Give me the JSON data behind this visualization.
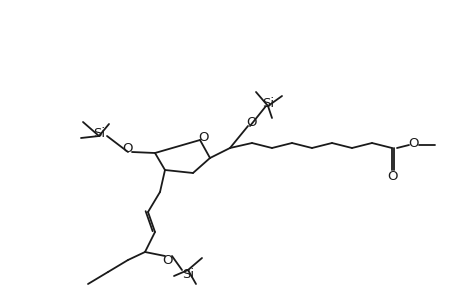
{
  "bg_color": "#ffffff",
  "line_color": "#1a1a1a",
  "line_width": 1.3,
  "font_size": 8.5,
  "figsize": [
    4.6,
    3.0
  ],
  "dpi": 100,
  "xlim": [
    0,
    460
  ],
  "ylim": [
    0,
    300
  ]
}
